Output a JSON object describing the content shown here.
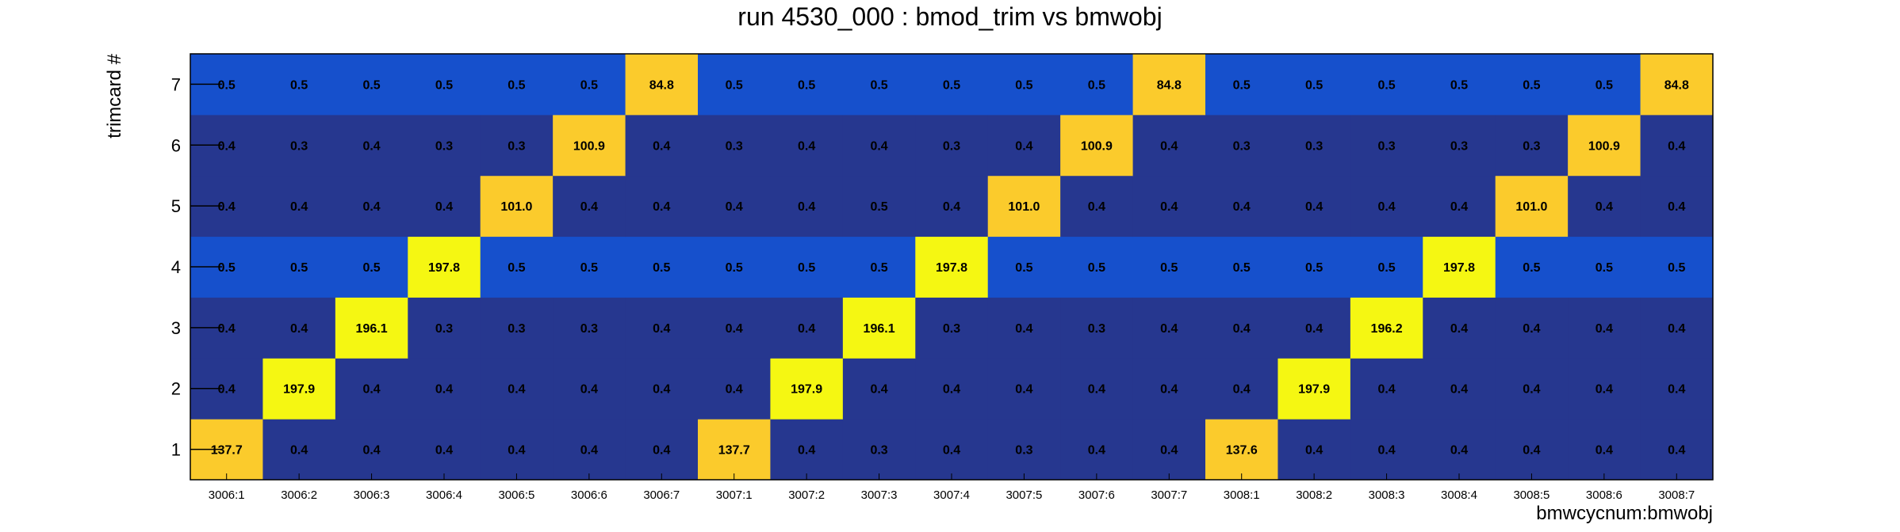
{
  "chart_data": {
    "type": "heatmap",
    "title": "run 4530_000 : bmod_trim vs bmwobj",
    "xlabel": "bmwcycnum:bmwobj",
    "ylabel": "trimcard #",
    "x_categories": [
      "3006:1",
      "3006:2",
      "3006:3",
      "3006:4",
      "3006:5",
      "3006:6",
      "3006:7",
      "3007:1",
      "3007:2",
      "3007:3",
      "3007:4",
      "3007:5",
      "3007:6",
      "3007:7",
      "3008:1",
      "3008:2",
      "3008:3",
      "3008:4",
      "3008:5",
      "3008:6",
      "3008:7"
    ],
    "y_categories": [
      "1",
      "2",
      "3",
      "4",
      "5",
      "6",
      "7"
    ],
    "values": [
      [
        "137.7",
        "0.4",
        "0.4",
        "0.4",
        "0.4",
        "0.4",
        "0.4",
        "137.7",
        "0.4",
        "0.3",
        "0.4",
        "0.3",
        "0.4",
        "0.4",
        "137.6",
        "0.4",
        "0.4",
        "0.4",
        "0.4",
        "0.4",
        "0.4"
      ],
      [
        "0.4",
        "197.9",
        "0.4",
        "0.4",
        "0.4",
        "0.4",
        "0.4",
        "0.4",
        "197.9",
        "0.4",
        "0.4",
        "0.4",
        "0.4",
        "0.4",
        "0.4",
        "197.9",
        "0.4",
        "0.4",
        "0.4",
        "0.4",
        "0.4"
      ],
      [
        "0.4",
        "0.4",
        "196.1",
        "0.3",
        "0.3",
        "0.3",
        "0.4",
        "0.4",
        "0.4",
        "196.1",
        "0.3",
        "0.4",
        "0.3",
        "0.4",
        "0.4",
        "0.4",
        "196.2",
        "0.4",
        "0.4",
        "0.4",
        "0.4"
      ],
      [
        "0.5",
        "0.5",
        "0.5",
        "197.8",
        "0.5",
        "0.5",
        "0.5",
        "0.5",
        "0.5",
        "0.5",
        "197.8",
        "0.5",
        "0.5",
        "0.5",
        "0.5",
        "0.5",
        "0.5",
        "197.8",
        "0.5",
        "0.5",
        "0.5"
      ],
      [
        "0.4",
        "0.4",
        "0.4",
        "0.4",
        "101.0",
        "0.4",
        "0.4",
        "0.4",
        "0.4",
        "0.5",
        "0.4",
        "101.0",
        "0.4",
        "0.4",
        "0.4",
        "0.4",
        "0.4",
        "0.4",
        "101.0",
        "0.4",
        "0.4"
      ],
      [
        "0.4",
        "0.3",
        "0.4",
        "0.3",
        "0.3",
        "100.9",
        "0.4",
        "0.3",
        "0.4",
        "0.4",
        "0.3",
        "0.4",
        "100.9",
        "0.4",
        "0.3",
        "0.3",
        "0.3",
        "0.3",
        "0.3",
        "100.9",
        "0.4"
      ],
      [
        "0.5",
        "0.5",
        "0.5",
        "0.5",
        "0.5",
        "0.5",
        "84.8",
        "0.5",
        "0.5",
        "0.5",
        "0.5",
        "0.5",
        "0.5",
        "84.8",
        "0.5",
        "0.5",
        "0.5",
        "0.5",
        "0.5",
        "0.5",
        "84.8"
      ]
    ],
    "row_background_colors": [
      "#26378f",
      "#26378f",
      "#26378f",
      "#1650cc",
      "#26378f",
      "#26378f",
      "#1650cc"
    ],
    "peak_colors": {
      "high": "#f5f712",
      "low": "#fbcb2c"
    }
  }
}
